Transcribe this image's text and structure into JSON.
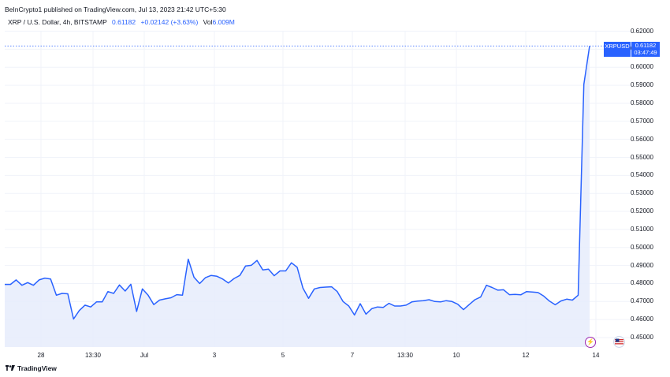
{
  "publisher": "BeInCrypto1 published on TradingView.com, Jul 13, 2023 21:42 UTC+5:30",
  "legend": {
    "symbol": "XRP / U.S. Dollar, 4h, BITSTAMP",
    "price": "0.61182",
    "change": "+0.02142 (+3.63%)",
    "vol_label": "Vol",
    "vol_value": "6.009M"
  },
  "price_tag": {
    "symbol": "XRPUSD",
    "price": "0.61182",
    "countdown": "03:47:49"
  },
  "brand": "TradingView",
  "colors": {
    "line": "#2962ff",
    "fill": "#e6ecfb",
    "grid": "#f0f3fa",
    "accent": "#2962ff"
  },
  "icons": {
    "event_1": "lightning-icon",
    "event_2": "us-flag-icon",
    "logo": "tradingview-logo-icon"
  },
  "chart_data": {
    "type": "area",
    "title": "XRP / U.S. Dollar, 4h, BITSTAMP",
    "xlabel": "",
    "ylabel": "",
    "x_tick_labels": [
      "28",
      "13:30",
      "Jul",
      "3",
      "5",
      "7",
      "13:30",
      "10",
      "12",
      "14"
    ],
    "y_tick_labels": [
      "0.62000",
      "0.61000",
      "0.60000",
      "0.59000",
      "0.58000",
      "0.57000",
      "0.56000",
      "0.55000",
      "0.54000",
      "0.53000",
      "0.52000",
      "0.51000",
      "0.50000",
      "0.49000",
      "0.48000",
      "0.47000",
      "0.46000",
      "0.45000"
    ],
    "ylim": [
      0.445,
      0.6245
    ],
    "last_price": 0.61182,
    "grid": true,
    "series": [
      {
        "values": [
          0.4795,
          0.4795,
          0.482,
          0.479,
          0.4805,
          0.479,
          0.482,
          0.483,
          0.4825,
          0.4735,
          0.4745,
          0.4743,
          0.4603,
          0.465,
          0.468,
          0.467,
          0.4698,
          0.4698,
          0.4755,
          0.4745,
          0.4792,
          0.4758,
          0.4796,
          0.4645,
          0.477,
          0.4735,
          0.4683,
          0.4708,
          0.4715,
          0.4721,
          0.4738,
          0.4735,
          0.4935,
          0.4835,
          0.48,
          0.4832,
          0.4845,
          0.484,
          0.4825,
          0.4803,
          0.4828,
          0.4845,
          0.4897,
          0.4901,
          0.4928,
          0.4875,
          0.488,
          0.4843,
          0.487,
          0.487,
          0.4915,
          0.489,
          0.4775,
          0.4718,
          0.477,
          0.4778,
          0.478,
          0.4782,
          0.4755,
          0.47,
          0.4675,
          0.4625,
          0.4688,
          0.463,
          0.466,
          0.467,
          0.4667,
          0.469,
          0.4675,
          0.4675,
          0.468,
          0.4698,
          0.4702,
          0.4705,
          0.471,
          0.47,
          0.4698,
          0.4705,
          0.47,
          0.4685,
          0.4655,
          0.4683,
          0.471,
          0.4725,
          0.479,
          0.4778,
          0.4763,
          0.4765,
          0.4738,
          0.474,
          0.4737,
          0.4755,
          0.4753,
          0.475,
          0.473,
          0.4702,
          0.4682,
          0.4703,
          0.4713,
          0.4708,
          0.4735,
          0.5905,
          0.61182
        ]
      }
    ]
  }
}
